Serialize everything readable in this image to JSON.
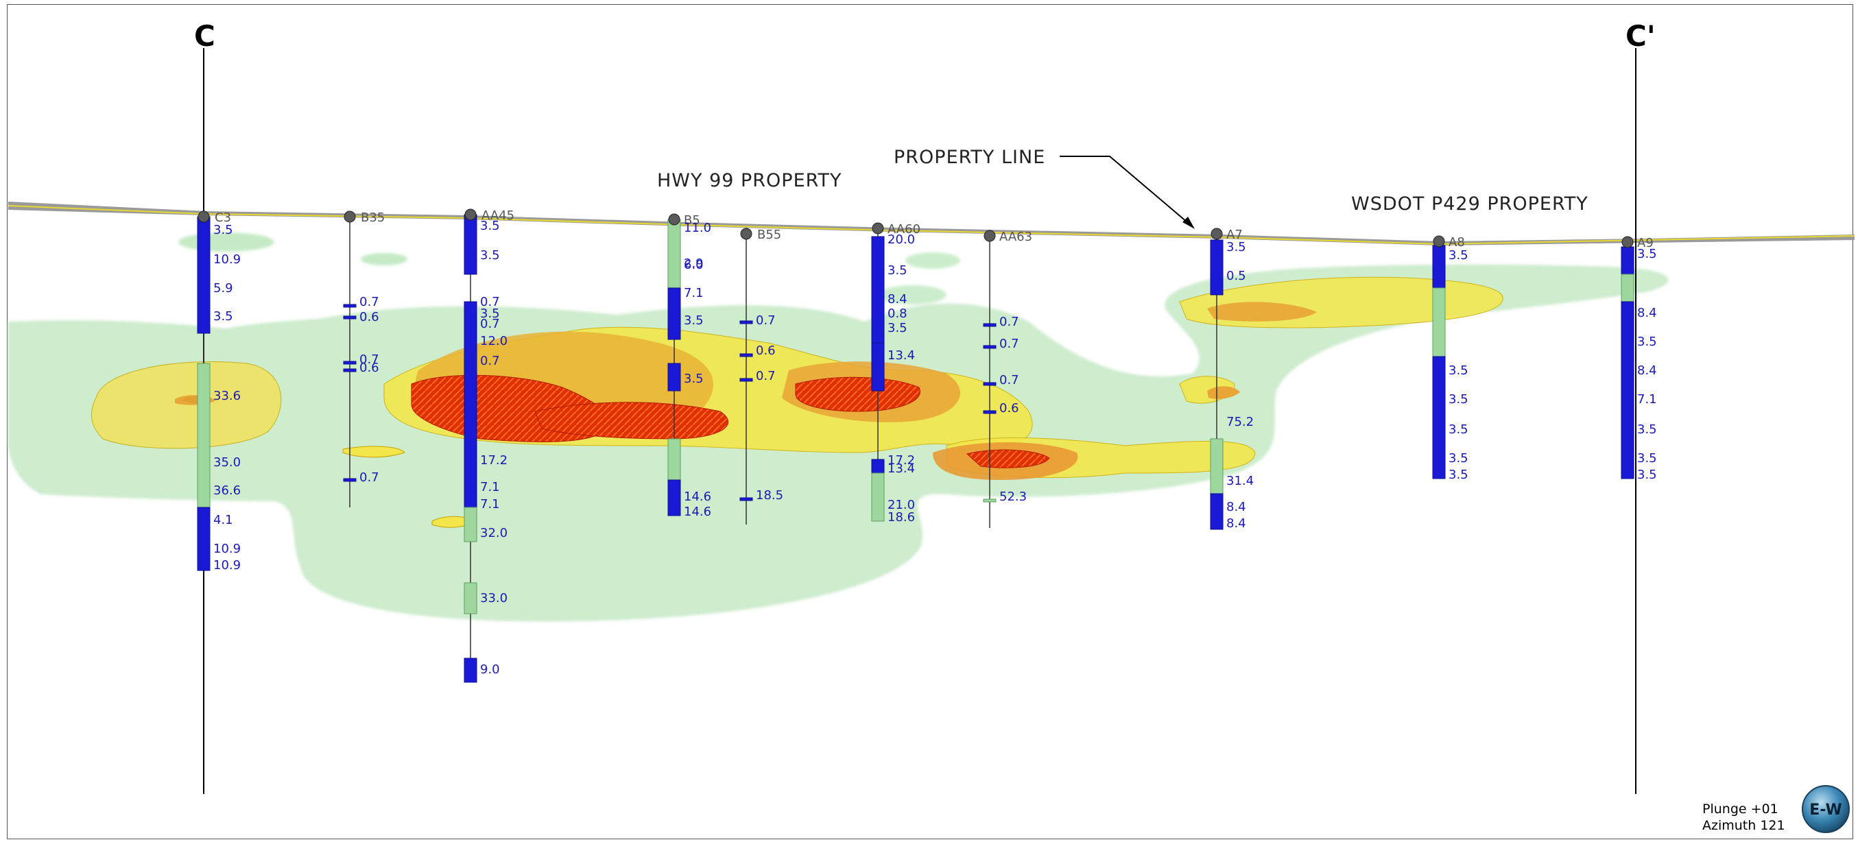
{
  "section": {
    "start": "C",
    "end": "C'"
  },
  "property_labels": {
    "hwy99": "HWY 99 PROPERTY",
    "property_line": "PROPERTY LINE",
    "wsdot": "WSDOT P429 PROPERTY"
  },
  "view": {
    "plunge": "Plunge +01",
    "azimuth": "Azimuth 121",
    "compass": "E-W"
  },
  "colors": {
    "blue": "#1a1ad6",
    "green": "#9ed79e",
    "label_blue": "#1a1ab4",
    "plume_red": "#ff2a00",
    "plume_yellow": "#f2e64a"
  },
  "wells": [
    {
      "name": "C3",
      "values": [
        "3.5",
        "10.9",
        "5.9",
        "3.5",
        "33.6",
        "35.0",
        "36.6",
        "4.1",
        "10.9",
        "10.9"
      ]
    },
    {
      "name": "B35",
      "values": [
        "0.7",
        "0.6",
        "0.7",
        "0.6",
        "0.7"
      ]
    },
    {
      "name": "AA45",
      "values": [
        "3.5",
        "3.5",
        "0.7",
        "3.5",
        "0.7",
        "12.0",
        "0.7",
        "17.2",
        "7.1",
        "7.1",
        "32.0",
        "33.0",
        "9.0"
      ]
    },
    {
      "name": "B5",
      "values": [
        "11.0",
        "6.0",
        "2.9",
        "7.1",
        "3.5",
        "3.5",
        "14.6",
        "14.6"
      ]
    },
    {
      "name": "B55",
      "values": [
        "0.7",
        "0.6",
        "0.7",
        "18.5"
      ]
    },
    {
      "name": "AA60",
      "values": [
        "20.0",
        "3.5",
        "8.4",
        "0.8",
        "3.5",
        "13.4",
        "17.2",
        "13.4",
        "21.0",
        "18.6"
      ]
    },
    {
      "name": "AA63",
      "values": [
        "0.7",
        "0.7",
        "0.7",
        "0.6",
        "52.3"
      ]
    },
    {
      "name": "A7",
      "values": [
        "3.5",
        "0.5",
        "75.2",
        "31.4",
        "8.4",
        "8.4"
      ]
    },
    {
      "name": "A8",
      "values": [
        "3.5",
        "3.5",
        "3.5",
        "3.5",
        "3.5",
        "3.5"
      ]
    },
    {
      "name": "A9",
      "values": [
        "3.5",
        "8.4",
        "3.5",
        "8.4",
        "7.1",
        "3.5",
        "3.5",
        "3.5"
      ]
    }
  ]
}
